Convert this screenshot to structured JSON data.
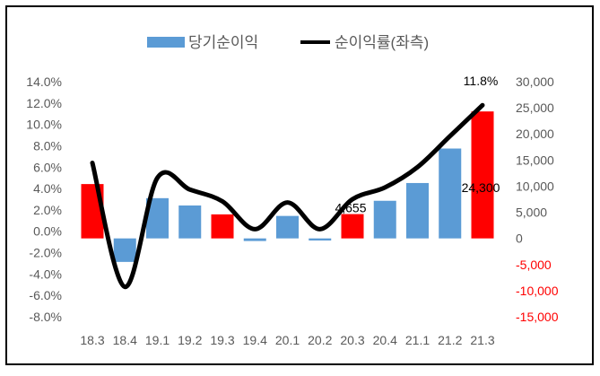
{
  "chart_data": {
    "type": "bar+line",
    "categories": [
      "18.3",
      "18.4",
      "19.1",
      "19.2",
      "19.3",
      "19.4",
      "20.1",
      "20.2",
      "20.3",
      "20.4",
      "21.1",
      "21.2",
      "21.3"
    ],
    "legend": {
      "position": "top",
      "bar_label": "당기순이익",
      "line_label": "순이익률(좌측)"
    },
    "bar_series": {
      "name": "당기순이익",
      "axis": "right",
      "values": [
        10400,
        -4500,
        7700,
        6300,
        4600,
        -500,
        4300,
        -400,
        4655,
        7200,
        10600,
        17200,
        24300
      ],
      "colors": [
        "#FF0000",
        "#5B9BD5",
        "#5B9BD5",
        "#5B9BD5",
        "#FF0000",
        "#5B9BD5",
        "#5B9BD5",
        "#5B9BD5",
        "#FF0000",
        "#5B9BD5",
        "#5B9BD5",
        "#5B9BD5",
        "#FF0000"
      ]
    },
    "line_series": {
      "name": "순이익률(좌측)",
      "axis": "left",
      "values": [
        6.4,
        -5.2,
        5.0,
        3.9,
        2.8,
        0.2,
        2.7,
        0.2,
        3.0,
        4.1,
        6.0,
        8.9,
        11.8
      ],
      "color": "#000000"
    },
    "data_labels": [
      {
        "series": "line",
        "index": 12,
        "text": "11.8%"
      },
      {
        "series": "bar",
        "index": 12,
        "text": "24,300"
      },
      {
        "series": "bar",
        "index": 8,
        "text": "4,655"
      }
    ],
    "left_axis": {
      "min": -8,
      "max": 14,
      "step": 2,
      "tick_labels": [
        "14.0%",
        "12.0%",
        "10.0%",
        "8.0%",
        "6.0%",
        "4.0%",
        "2.0%",
        "0.0%",
        "-2.0%",
        "-4.0%",
        "-6.0%",
        "-8.0%"
      ]
    },
    "right_axis": {
      "min": -15000,
      "max": 30000,
      "step": 5000,
      "tick_labels": [
        "30,000",
        "25,000",
        "20,000",
        "15,000",
        "10,000",
        "5,000",
        "0",
        "-5,000",
        "-10,000",
        "-15,000"
      ],
      "negative_label_color": "#FF0000"
    },
    "grid": false
  }
}
